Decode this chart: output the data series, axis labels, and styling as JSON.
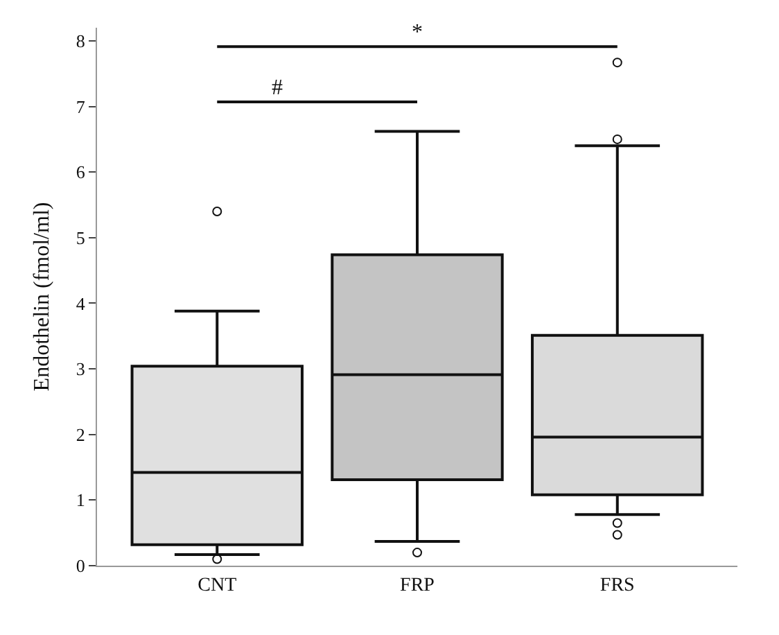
{
  "chart_data": {
    "type": "box",
    "ylabel": "Endothelin (fmol/ml)",
    "categories": [
      "CNT",
      "FRP",
      "FRS"
    ],
    "colors": [
      "#e0e0e0",
      "#c4c4c4",
      "#dadada"
    ],
    "boxes": [
      {
        "low": 0.17,
        "q1": 0.32,
        "median": 1.42,
        "q3": 3.04,
        "high": 3.88,
        "outliers": [
          5.4,
          0.1
        ]
      },
      {
        "low": 0.37,
        "q1": 1.31,
        "median": 2.91,
        "q3": 4.74,
        "high": 6.62,
        "outliers": [
          0.2
        ]
      },
      {
        "low": 0.78,
        "q1": 1.08,
        "median": 1.96,
        "q3": 3.51,
        "high": 6.4,
        "outliers": [
          7.67,
          6.5,
          0.65,
          0.47
        ]
      }
    ],
    "ylim": [
      0,
      8.2
    ],
    "yticks": [
      0,
      1,
      2,
      3,
      4,
      5,
      6,
      7,
      8
    ],
    "legend": false,
    "annotations": [
      "*",
      "#"
    ]
  }
}
